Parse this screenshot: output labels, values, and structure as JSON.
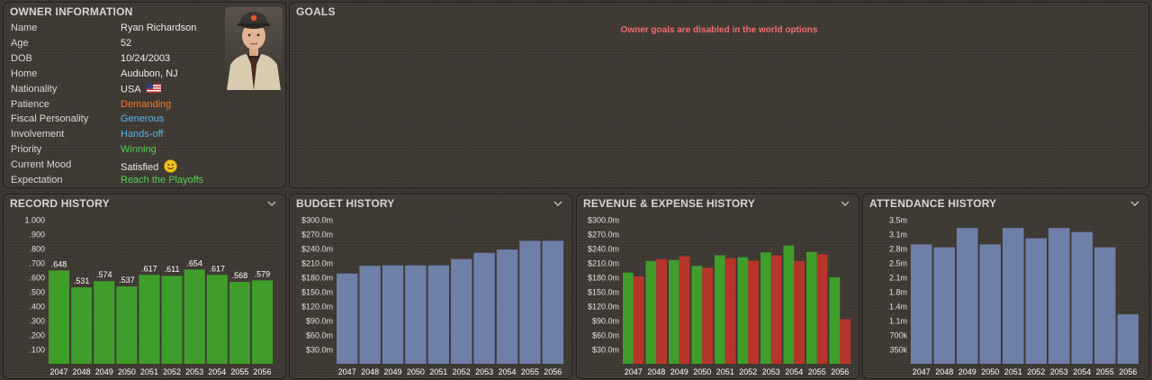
{
  "owner": {
    "title": "OWNER INFORMATION",
    "rows": [
      {
        "label": "Name",
        "value": "Ryan Richardson",
        "color": "#f0ece6"
      },
      {
        "label": "Age",
        "value": "52",
        "color": "#f0ece6"
      },
      {
        "label": "DOB",
        "value": "10/24/2003",
        "color": "#f0ece6"
      },
      {
        "label": "Home",
        "value": "Audubon, NJ",
        "color": "#f0ece6"
      },
      {
        "label": "Nationality",
        "value": "USA",
        "color": "#f0ece6",
        "icon": "us-flag-icon"
      },
      {
        "label": "Patience",
        "value": "Demanding",
        "color": "#f07a2a"
      },
      {
        "label": "Fiscal Personality",
        "value": "Generous",
        "color": "#5ab4e6"
      },
      {
        "label": "Involvement",
        "value": "Hands-off",
        "color": "#5ab4e6"
      },
      {
        "label": "Priority",
        "value": "Winning",
        "color": "#4fd14f"
      },
      {
        "label": "Current Mood",
        "value": "Satisfied",
        "color": "#f0ece6",
        "icon": "smiley-icon"
      },
      {
        "label": "Expectation",
        "value": "Reach the Playoffs",
        "color": "#4fd14f"
      }
    ]
  },
  "goals": {
    "title": "GOALS",
    "message": "Owner goals are disabled in the world options",
    "message_color": "#f06c6c"
  },
  "colors": {
    "green": "#3f9e2a",
    "red": "#b8342b",
    "blue": "#6e7fa8"
  },
  "chart_data": [
    {
      "type": "bar",
      "title": "RECORD HISTORY",
      "categories": [
        "2047",
        "2048",
        "2049",
        "2050",
        "2051",
        "2052",
        "2053",
        "2054",
        "2055",
        "2056"
      ],
      "yticks": [
        "1.000",
        ".900",
        ".800",
        ".700",
        ".600",
        ".500",
        ".400",
        ".300",
        ".200",
        ".100"
      ],
      "ylim": [
        0,
        1
      ],
      "series": [
        {
          "values": [
            0.648,
            0.531,
            0.574,
            0.537,
            0.617,
            0.611,
            0.654,
            0.617,
            0.568,
            0.579
          ],
          "color": "#3f9e2a"
        }
      ],
      "data_labels": [
        ".648",
        ".531",
        ".574",
        ".537",
        ".617",
        ".611",
        ".654",
        ".617",
        ".568",
        ".579"
      ]
    },
    {
      "type": "bar",
      "title": "BUDGET HISTORY",
      "categories": [
        "2047",
        "2048",
        "2049",
        "2050",
        "2051",
        "2052",
        "2053",
        "2054",
        "2055",
        "2056"
      ],
      "yticks": [
        "$300.0m",
        "$270.0m",
        "$240.0m",
        "$210.0m",
        "$180.0m",
        "$150.0m",
        "$120.0m",
        "$90.0m",
        "$60.0m",
        "$30.0m"
      ],
      "ylim": [
        0,
        300
      ],
      "series": [
        {
          "values": [
            188,
            204,
            205,
            205,
            205,
            218,
            231,
            238,
            256,
            256
          ],
          "color": "#6e7fa8"
        }
      ]
    },
    {
      "type": "bar",
      "title": "REVENUE & EXPENSE HISTORY",
      "categories": [
        "2047",
        "2048",
        "2049",
        "2050",
        "2051",
        "2052",
        "2053",
        "2054",
        "2055",
        "2056"
      ],
      "yticks": [
        "$300.0m",
        "$270.0m",
        "$240.0m",
        "$210.0m",
        "$180.0m",
        "$150.0m",
        "$120.0m",
        "$90.0m",
        "$60.0m",
        "$30.0m"
      ],
      "ylim": [
        0,
        300
      ],
      "series": [
        {
          "values": [
            190,
            214,
            216,
            204,
            226,
            222,
            232,
            246,
            233,
            180
          ],
          "color": "#3f9e2a"
        },
        {
          "values": [
            182,
            218,
            224,
            200,
            220,
            215,
            226,
            214,
            228,
            93
          ],
          "color": "#b8342b"
        }
      ]
    },
    {
      "type": "bar",
      "title": "ATTENDANCE HISTORY",
      "categories": [
        "2047",
        "2048",
        "2049",
        "2050",
        "2051",
        "2052",
        "2053",
        "2054",
        "2055",
        "2056"
      ],
      "yticks": [
        "3.5m",
        "3.1m",
        "2.8m",
        "2.5m",
        "2.1m",
        "1.8m",
        "1.4m",
        "1.1m",
        "700k",
        "350k"
      ],
      "ylim": [
        0,
        3.5
      ],
      "series": [
        {
          "values": [
            2.9,
            2.83,
            3.3,
            2.9,
            3.3,
            3.05,
            3.3,
            3.2,
            2.83,
            1.2
          ],
          "color": "#6e7fa8"
        }
      ]
    }
  ]
}
